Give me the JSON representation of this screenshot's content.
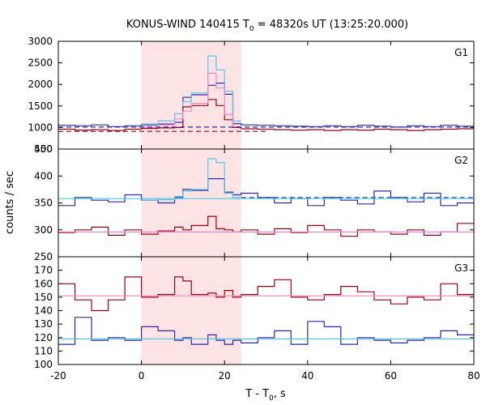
{
  "chart_data": {
    "type": "line",
    "title": "KONUS-WIND 140415 T",
    "title_sub": "0",
    "title_rest": " = 48320s UT (13:25:20.000)",
    "xlabel": "T - T",
    "xlabel_sub": "0",
    "xlabel_rest": ", s",
    "ylabel": "counts / sec",
    "xlim": [
      -20,
      80
    ],
    "x_ticks": [
      "-20",
      "0",
      "20",
      "40",
      "60",
      "80"
    ],
    "x_tick_values": [
      -20,
      0,
      20,
      40,
      60,
      80
    ],
    "shaded_interval": [
      0,
      24
    ],
    "grid": false,
    "colors": {
      "shade": "#fde3e3",
      "blue": "#2a2aaa",
      "cyan": "#55c8e8",
      "red": "#a00014",
      "pink": "#ee88cc"
    },
    "panels": [
      {
        "label": "G1",
        "ylim": [
          500,
          3000
        ],
        "y_ticks": [
          "500",
          "1000",
          "1500",
          "2000",
          "2500",
          "3000"
        ],
        "y_tick_values": [
          500,
          1000,
          1500,
          2000,
          2500,
          3000
        ],
        "series": [
          {
            "color": "#2a2aaa",
            "x": [
              -20,
              -16,
              -12,
              -8,
              -4,
              0,
              4,
              8,
              10,
              12,
              16,
              18,
              20,
              22,
              24,
              28,
              32,
              36,
              40,
              44,
              48,
              52,
              56,
              60,
              64,
              68,
              72,
              76,
              80
            ],
            "values": [
              1050,
              1040,
              1060,
              1020,
              1040,
              1060,
              1080,
              1120,
              1700,
              1760,
              1980,
              2030,
              1770,
              1090,
              1060,
              1050,
              1040,
              1030,
              1020,
              1040,
              1020,
              1050,
              1030,
              1010,
              1040,
              1020,
              1050,
              1030,
              1050
            ],
            "step": true
          },
          {
            "color": "#55c8e8",
            "x": [
              0,
              4,
              8,
              10,
              12,
              16,
              18,
              20,
              22,
              24
            ],
            "values": [
              1080,
              1150,
              1320,
              1600,
              1800,
              2660,
              2340,
              1840,
              1150,
              1080
            ],
            "step": true
          },
          {
            "color": "#a00014",
            "x": [
              -20,
              -16,
              -12,
              -8,
              -4,
              0,
              4,
              8,
              10,
              12,
              16,
              18,
              20,
              22,
              24,
              28,
              32,
              36,
              40,
              44,
              48,
              52,
              56,
              60,
              64,
              68,
              72,
              76,
              80
            ],
            "values": [
              960,
              940,
              950,
              930,
              960,
              980,
              990,
              1000,
              1480,
              1510,
              1650,
              1510,
              1180,
              1000,
              970,
              960,
              950,
              940,
              950,
              930,
              950,
              940,
              960,
              950,
              930,
              950,
              960,
              970,
              960
            ],
            "step": true
          },
          {
            "color": "#ee88cc",
            "x": [
              0,
              4,
              8,
              10,
              12,
              16,
              18,
              20,
              22,
              24
            ],
            "values": [
              1000,
              1060,
              1200,
              1380,
              1560,
              2260,
              1920,
              1300,
              1020,
              990
            ],
            "step": true
          },
          {
            "color": "#2a2aaa",
            "x": [
              -20,
              80
            ],
            "values": [
              1010,
              1010
            ],
            "step": false,
            "dash": true
          },
          {
            "color": "#a00014",
            "x": [
              -20,
              30
            ],
            "values": [
              910,
              910
            ],
            "step": false,
            "dash": true
          }
        ]
      },
      {
        "label": "G2",
        "ylim": [
          250,
          450
        ],
        "y_ticks": [
          "250",
          "300",
          "350",
          "400",
          "450"
        ],
        "y_tick_values": [
          250,
          300,
          350,
          400,
          450
        ],
        "series": [
          {
            "color": "#2a2aaa",
            "x": [
              -20,
              -16,
              -12,
              -8,
              -4,
              0,
              4,
              8,
              10,
              12,
              16,
              18,
              20,
              22,
              24,
              28,
              32,
              36,
              40,
              44,
              48,
              52,
              56,
              60,
              64,
              68,
              72,
              76,
              80
            ],
            "values": [
              345,
              360,
              355,
              352,
              365,
              355,
              350,
              360,
              375,
              373,
              395,
              395,
              370,
              365,
              368,
              360,
              350,
              358,
              345,
              360,
              355,
              348,
              372,
              360,
              352,
              368,
              345,
              350,
              362
            ],
            "step": true
          },
          {
            "color": "#55c8e8",
            "x": [
              0,
              4,
              8,
              10,
              12,
              16,
              18,
              20,
              22,
              24
            ],
            "values": [
              355,
              356,
              362,
              372,
              375,
              432,
              425,
              368,
              360,
              358
            ],
            "step": true
          },
          {
            "color": "#a00014",
            "x": [
              -20,
              -16,
              -12,
              -8,
              -4,
              0,
              4,
              8,
              10,
              12,
              16,
              18,
              20,
              22,
              24,
              28,
              32,
              36,
              40,
              44,
              48,
              52,
              56,
              60,
              64,
              68,
              72,
              76,
              80
            ],
            "values": [
              295,
              300,
              305,
              290,
              300,
              292,
              298,
              305,
              300,
              308,
              325,
              302,
              300,
              296,
              300,
              292,
              302,
              295,
              308,
              300,
              288,
              300,
              296,
              292,
              300,
              290,
              296,
              312,
              300
            ],
            "step": true
          },
          {
            "color": "#55c8e8",
            "x": [
              -20,
              80
            ],
            "values": [
              358,
              358
            ],
            "step": false
          },
          {
            "color": "#2a2aaa",
            "x": [
              24,
              80
            ],
            "values": [
              360,
              360
            ],
            "step": false,
            "dash": true
          },
          {
            "color": "#ee88cc",
            "x": [
              -20,
              80
            ],
            "values": [
              296,
              296
            ],
            "step": false
          }
        ]
      },
      {
        "label": "G3",
        "ylim": [
          100,
          180
        ],
        "y_ticks": [
          "100",
          "110",
          "120",
          "130",
          "140",
          "150",
          "160",
          "170"
        ],
        "y_tick_values": [
          100,
          110,
          120,
          130,
          140,
          150,
          160,
          170
        ],
        "series": [
          {
            "color": "#a00014",
            "x": [
              -20,
              -16,
              -12,
              -8,
              -4,
              0,
              4,
              8,
              10,
              12,
              16,
              18,
              20,
              22,
              24,
              28,
              32,
              36,
              40,
              44,
              48,
              52,
              56,
              60,
              64,
              68,
              72,
              76,
              80
            ],
            "values": [
              160,
              148,
              140,
              148,
              165,
              150,
              152,
              165,
              162,
              152,
              153,
              150,
              155,
              150,
              152,
              158,
              163,
              150,
              148,
              152,
              158,
              154,
              148,
              145,
              150,
              148,
              160,
              152,
              158
            ],
            "step": true
          },
          {
            "color": "#2a2aaa",
            "x": [
              -20,
              -16,
              -12,
              -8,
              -4,
              0,
              4,
              8,
              10,
              12,
              16,
              18,
              20,
              22,
              24,
              28,
              32,
              36,
              40,
              44,
              48,
              52,
              56,
              60,
              64,
              68,
              72,
              76,
              80
            ],
            "values": [
              115,
              135,
              118,
              120,
              118,
              128,
              125,
              118,
              120,
              115,
              122,
              118,
              115,
              118,
              116,
              120,
              125,
              115,
              132,
              128,
              115,
              120,
              118,
              116,
              118,
              120,
              125,
              122,
              118
            ],
            "step": true
          },
          {
            "color": "#ee88cc",
            "x": [
              -20,
              80
            ],
            "values": [
              151,
              151
            ],
            "step": false
          },
          {
            "color": "#55c8e8",
            "x": [
              -20,
              80
            ],
            "values": [
              119,
              119
            ],
            "step": false
          }
        ]
      }
    ]
  }
}
